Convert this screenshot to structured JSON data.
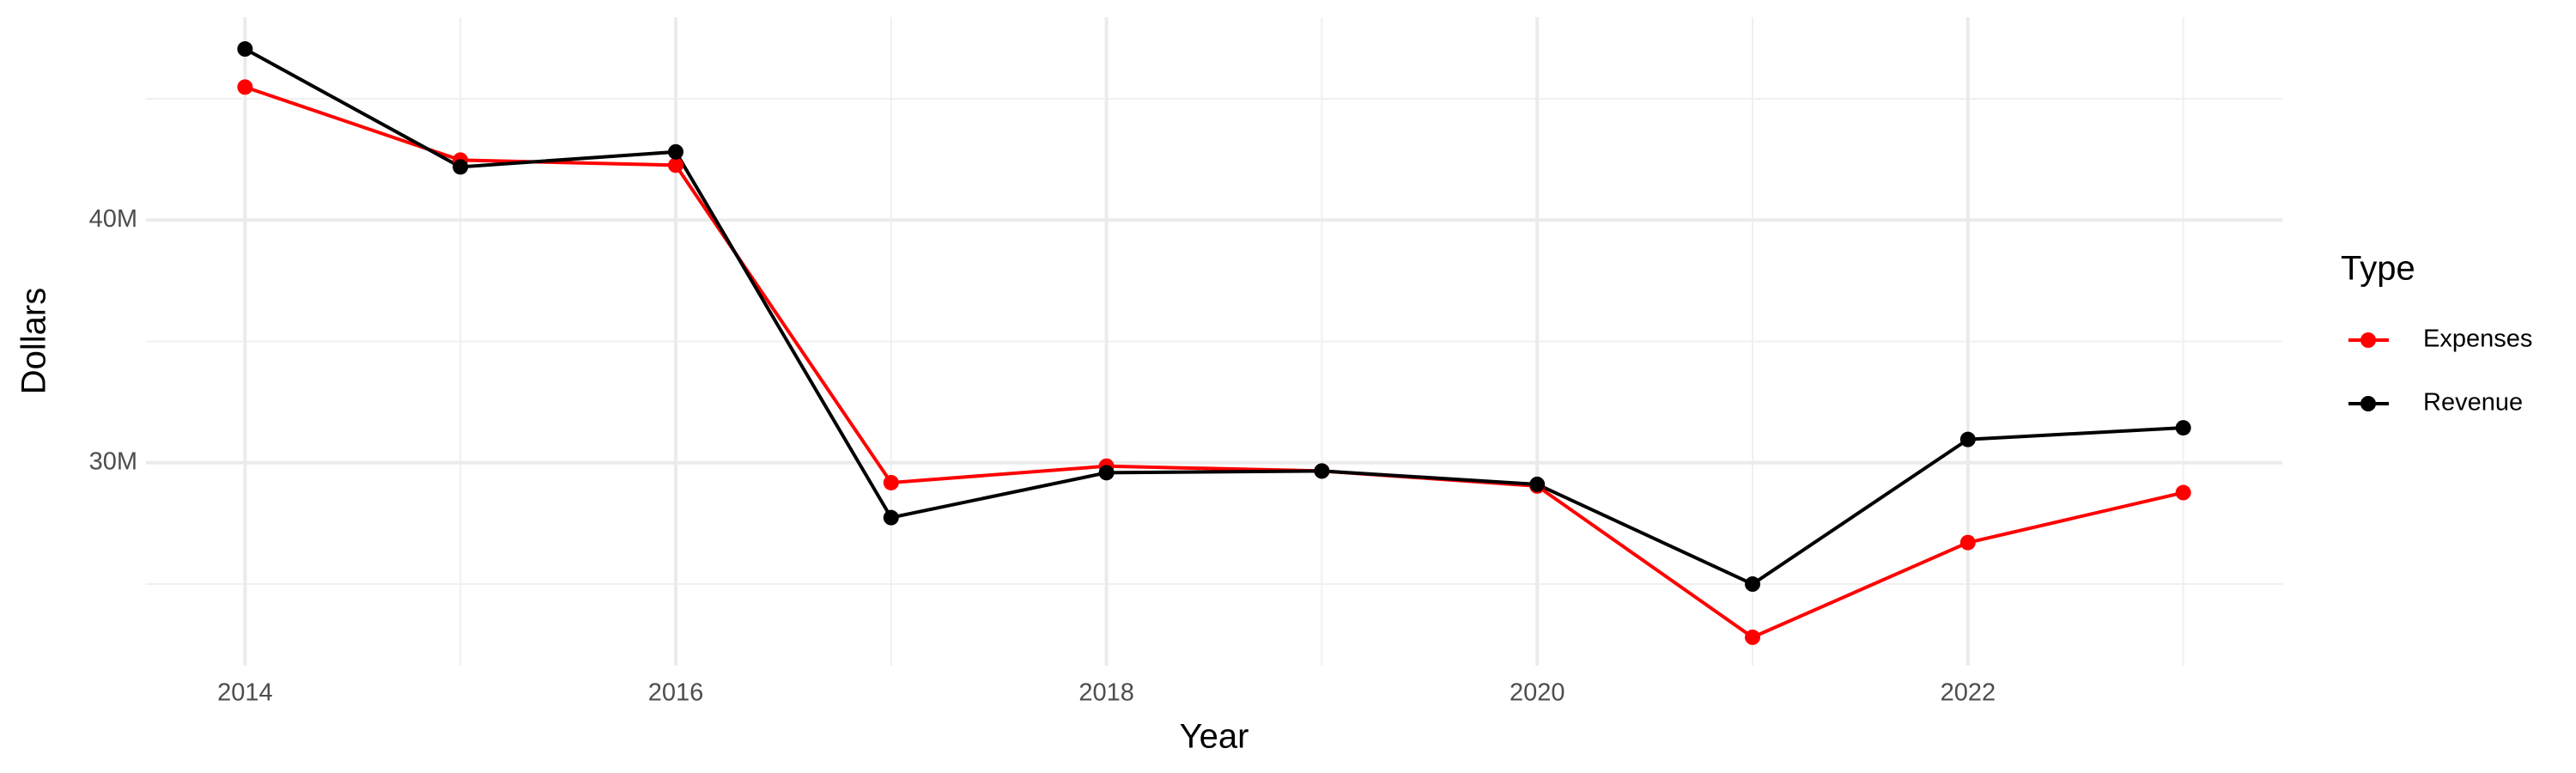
{
  "chart_data": {
    "type": "line",
    "x_label": "Year",
    "y_label": "Dollars",
    "legend_title": "Type",
    "x": [
      2014,
      2015,
      2016,
      2017,
      2018,
      2019,
      2020,
      2021,
      2022,
      2023
    ],
    "series": [
      {
        "name": "Expenses",
        "color": "#ff0000",
        "values": [
          45480000,
          42470000,
          42260000,
          29180000,
          29860000,
          29660000,
          29040000,
          22810000,
          26710000,
          28770000
        ]
      },
      {
        "name": "Revenue",
        "color": "#000000",
        "values": [
          47050000,
          42190000,
          42810000,
          27740000,
          29590000,
          29660000,
          29110000,
          25000000,
          30960000,
          31440000
        ]
      }
    ],
    "xlim": [
      2013.54,
      2023.46
    ],
    "xticks": [
      2014,
      2016,
      2018,
      2020,
      2022
    ],
    "minor_xticks": [
      2015,
      2017,
      2019,
      2021,
      2023
    ],
    "ylim": [
      21640000,
      48360000
    ],
    "yticks": [
      {
        "value": 30000000,
        "label": "30M"
      },
      {
        "value": 40000000,
        "label": "40M"
      }
    ],
    "minor_yticks": [
      25000000,
      35000000,
      45000000
    ],
    "grid": true,
    "legend_position": "right"
  }
}
